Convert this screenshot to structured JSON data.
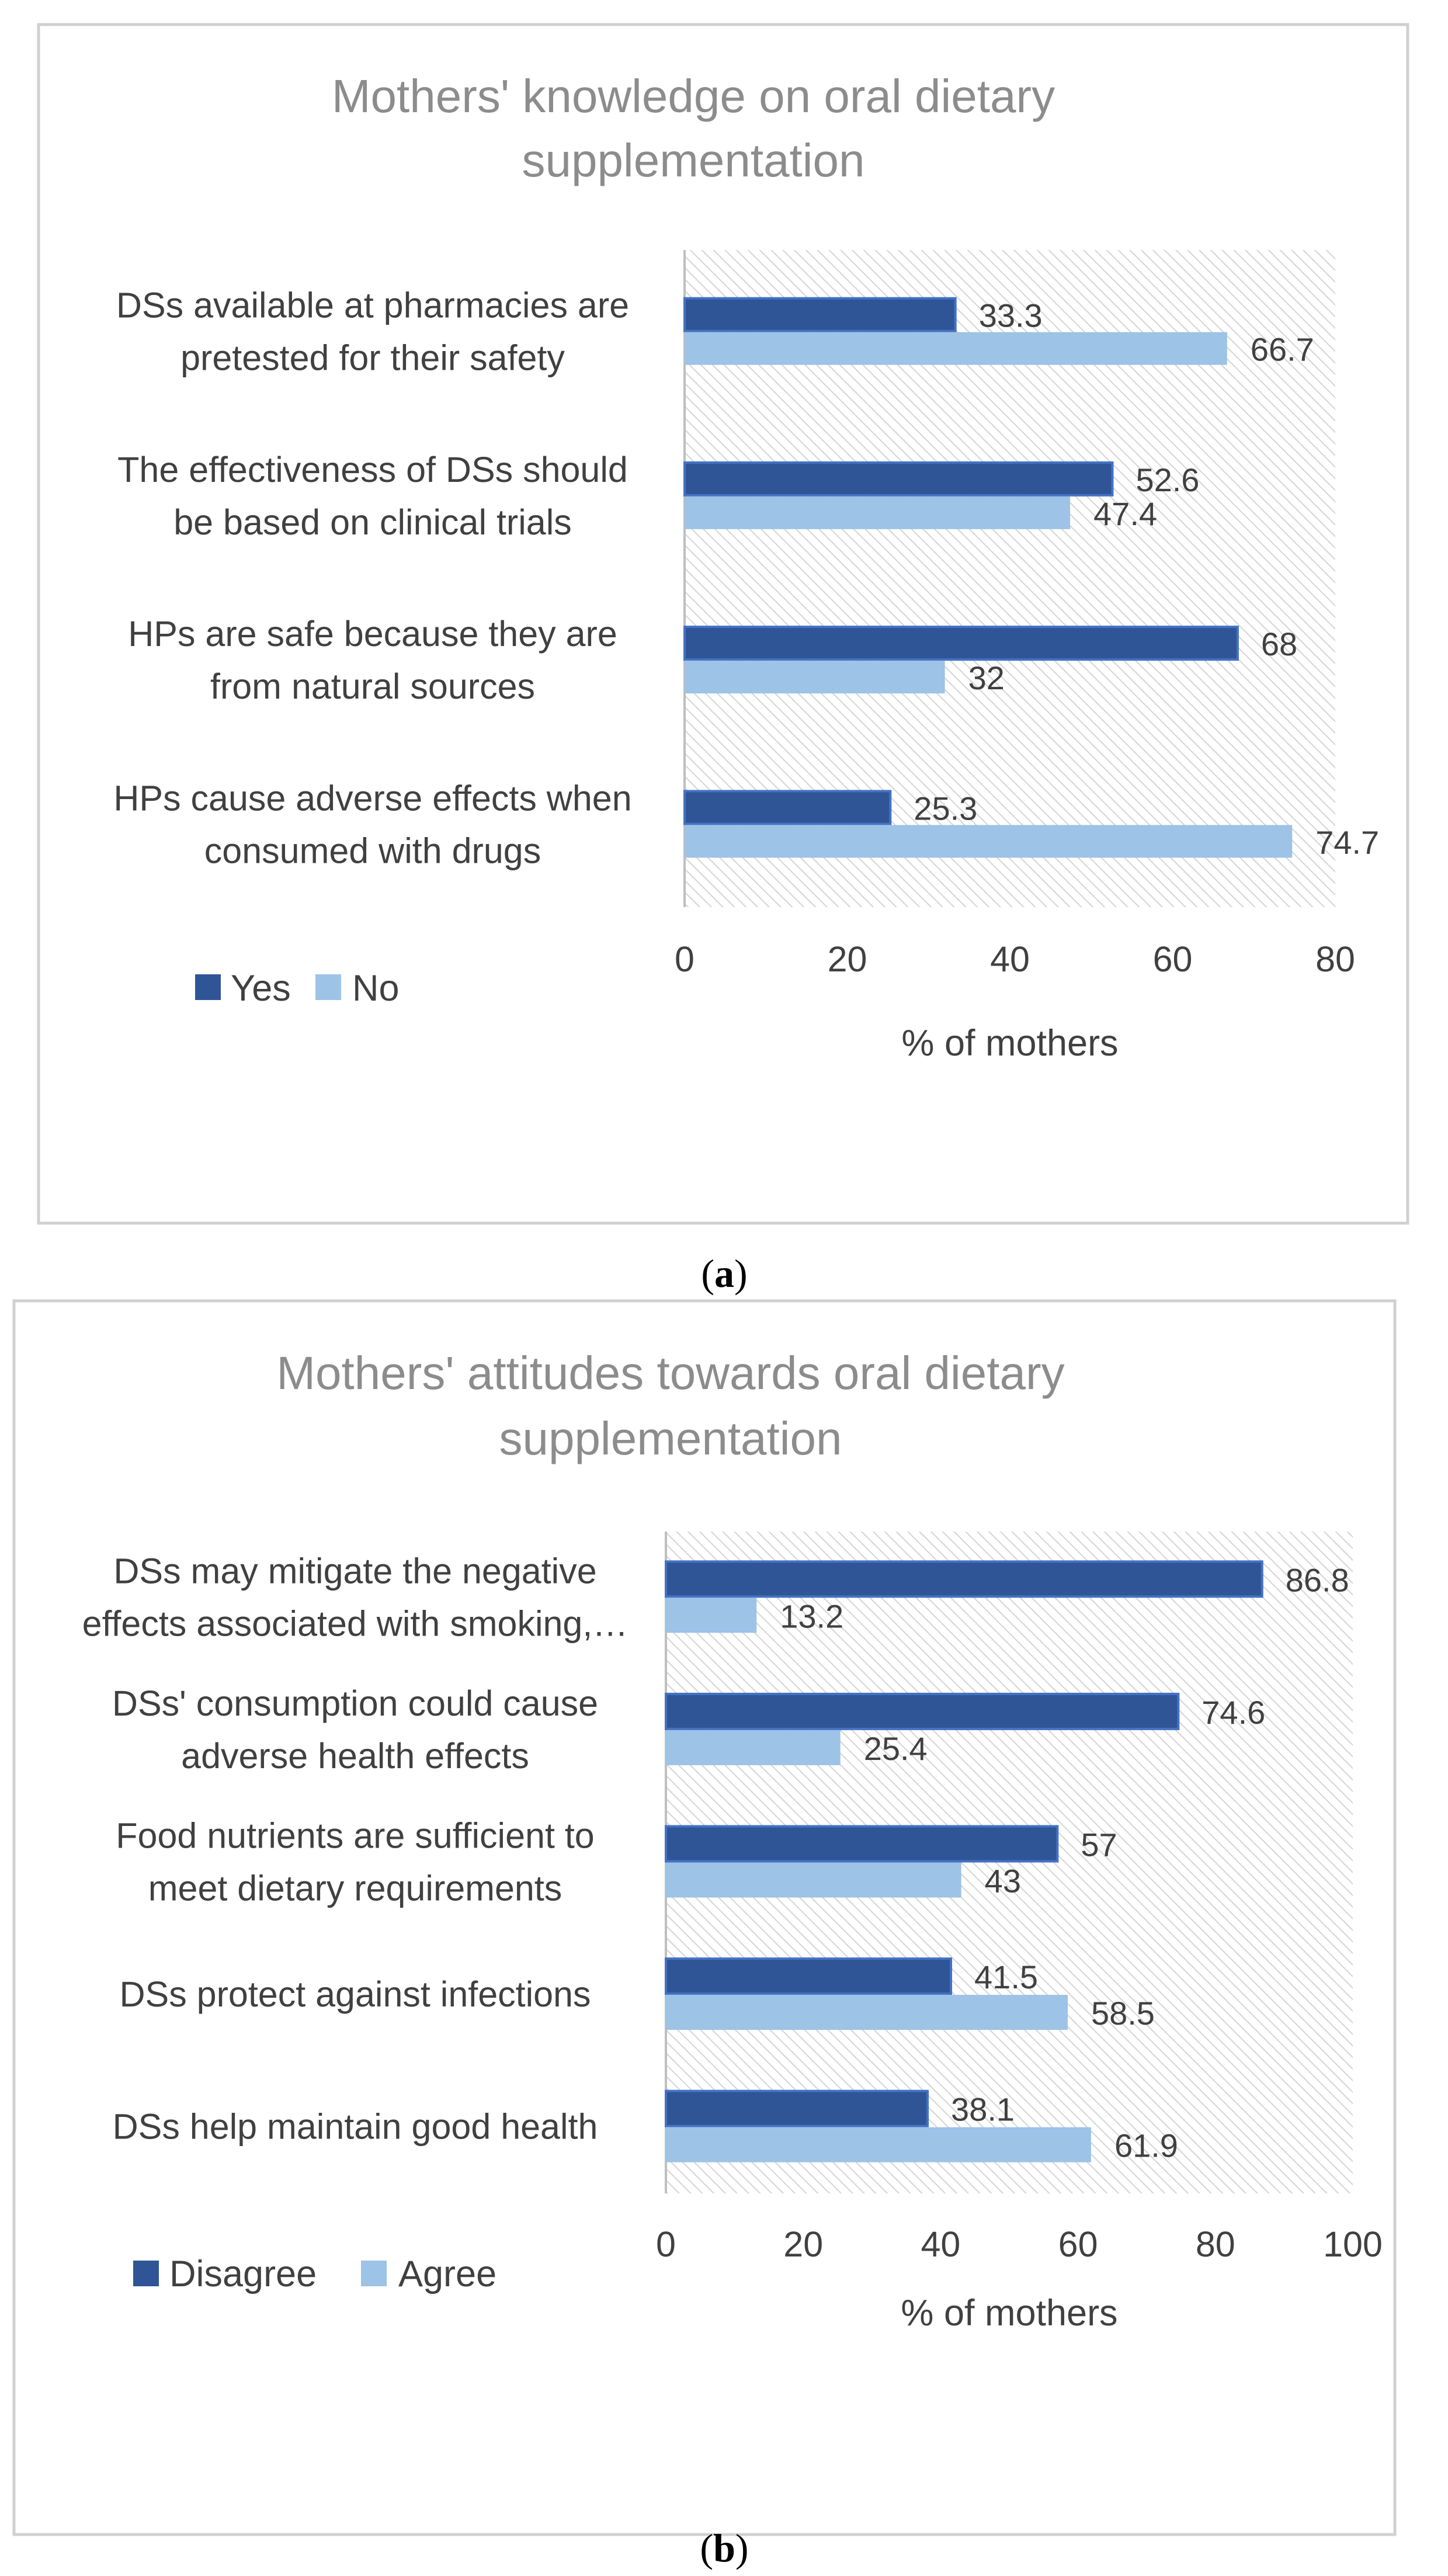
{
  "colors": {
    "dark": "#2f5597",
    "light": "#9dc3e6",
    "frame": "#d0d0d0"
  },
  "chart_data": [
    {
      "panel": "a",
      "type": "bar",
      "orientation": "horizontal",
      "title": [
        "Mothers' knowledge on oral dietary",
        "supplementation"
      ],
      "xlabel": "% of mothers",
      "xlim": [
        0,
        80
      ],
      "ticks": [
        "0",
        "20",
        "40",
        "60",
        "80"
      ],
      "categories": [
        [
          "DSs available at pharmacies are",
          "pretested for their safety"
        ],
        [
          "The effectiveness of DSs should",
          "be based on clinical trials"
        ],
        [
          "HPs are safe because they are",
          "from natural sources"
        ],
        [
          "HPs cause adverse effects when",
          "consumed with drugs"
        ]
      ],
      "series": [
        {
          "name": "Yes",
          "values": [
            33.3,
            52.6,
            68,
            25.3
          ],
          "labels": [
            "33.3",
            "52.6",
            "68",
            "25.3"
          ]
        },
        {
          "name": "No",
          "values": [
            66.7,
            47.4,
            32,
            74.7
          ],
          "labels": [
            "66.7",
            "47.4",
            "32",
            "74.7"
          ]
        }
      ],
      "legend_position": "bottom-left"
    },
    {
      "panel": "b",
      "type": "bar",
      "orientation": "horizontal",
      "title": [
        "Mothers' attitudes towards oral dietary",
        "supplementation"
      ],
      "xlabel": "% of mothers",
      "xlim": [
        0,
        100
      ],
      "ticks": [
        "0",
        "20",
        "40",
        "60",
        "80",
        "100"
      ],
      "categories": [
        [
          "DSs may mitigate the negative",
          "effects associated with smoking,…"
        ],
        [
          "DSs' consumption could cause",
          "adverse health effects"
        ],
        [
          "Food nutrients are sufficient to",
          "meet dietary requirements"
        ],
        [
          "DSs protect against infections"
        ],
        [
          "DSs help maintain good health"
        ]
      ],
      "series": [
        {
          "name": "Disagree",
          "values": [
            86.8,
            74.6,
            57,
            41.5,
            38.1
          ],
          "labels": [
            "86.8",
            "74.6",
            "57",
            "41.5",
            "38.1"
          ]
        },
        {
          "name": "Agree",
          "values": [
            13.2,
            25.4,
            43,
            58.5,
            61.9
          ],
          "labels": [
            "13.2",
            "25.4",
            "43",
            "58.5",
            "61.9"
          ]
        }
      ],
      "legend_position": "bottom-left"
    }
  ],
  "panel_labels": [
    "a",
    "b"
  ]
}
